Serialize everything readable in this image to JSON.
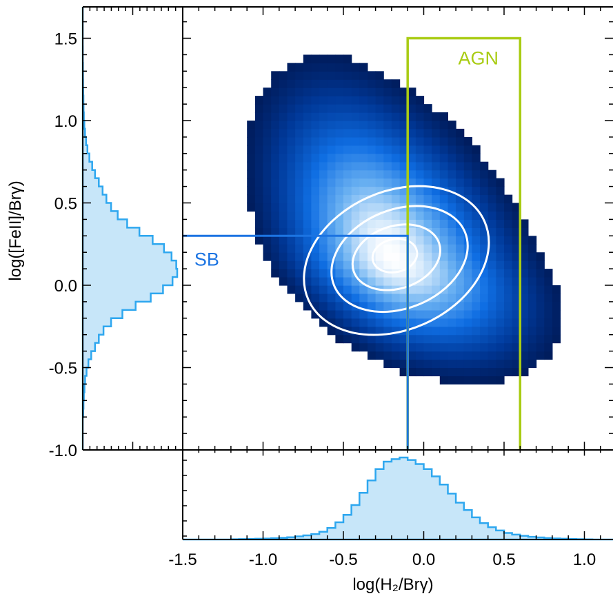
{
  "chart_data": {
    "type": "heatmap",
    "xlabel": "log(H₂/Brγ)",
    "ylabel": "log([FeII]/Brγ)",
    "xlim": [
      -1.5,
      1.1
    ],
    "ylim": [
      -1.0,
      1.65
    ],
    "x_ticks": [
      "-1.5",
      "-1.0",
      "-0.5",
      "0.0",
      "0.5",
      "1.0"
    ],
    "y_ticks": [
      "1.5",
      "1.0",
      "0.5",
      "0.0",
      "-0.5",
      "-1.0"
    ],
    "x_tick_values": [
      -1.5,
      -1.0,
      -0.5,
      0.0,
      0.5,
      1.0
    ],
    "y_tick_values": [
      1.5,
      1.0,
      0.5,
      0.0,
      -0.5,
      -1.0
    ],
    "density_peak": {
      "x": -0.2,
      "y": 0.17
    },
    "colormap": [
      "#00072f",
      "#003898",
      "#0f6ee3",
      "#6cb2f2",
      "#ffffff"
    ],
    "regions": [
      {
        "name": "AGN",
        "label": "AGN",
        "color": "#a9cc14",
        "x_range": [
          -0.1,
          0.6
        ],
        "y_range": [
          -1.0,
          1.5
        ]
      },
      {
        "name": "SB",
        "label": "SB",
        "color": "#1c74e2",
        "x_max": -0.1,
        "y_max": 0.3
      }
    ],
    "contour_color": "#ffffff",
    "histogram_color": "#2ea7ef",
    "histogram_fill": "#c7e6f9",
    "hist_x": {
      "x": [
        -1.5,
        -1.45,
        -1.4,
        -1.35,
        -1.3,
        -1.25,
        -1.2,
        -1.15,
        -1.1,
        -1.05,
        -1.0,
        -0.95,
        -0.9,
        -0.85,
        -0.8,
        -0.75,
        -0.7,
        -0.65,
        -0.6,
        -0.55,
        -0.5,
        -0.45,
        -0.4,
        -0.35,
        -0.3,
        -0.25,
        -0.2,
        -0.15,
        -0.1,
        -0.05,
        0.0,
        0.05,
        0.1,
        0.15,
        0.2,
        0.25,
        0.3,
        0.35,
        0.4,
        0.45,
        0.5,
        0.55,
        0.6,
        0.65,
        0.7,
        0.75,
        0.8,
        0.85,
        0.9,
        0.95,
        1.0,
        1.05
      ],
      "counts": [
        0.0,
        0.0,
        0.0,
        0.0,
        0.0,
        0.0,
        0.003,
        0.005,
        0.007,
        0.009,
        0.012,
        0.016,
        0.021,
        0.028,
        0.038,
        0.05,
        0.066,
        0.095,
        0.14,
        0.21,
        0.3,
        0.42,
        0.57,
        0.72,
        0.86,
        0.95,
        0.98,
        1.0,
        0.97,
        0.92,
        0.86,
        0.77,
        0.67,
        0.56,
        0.45,
        0.36,
        0.27,
        0.2,
        0.15,
        0.11,
        0.08,
        0.06,
        0.045,
        0.033,
        0.025,
        0.018,
        0.013,
        0.009,
        0.006,
        0.004,
        0.002,
        0.0
      ]
    },
    "hist_y": {
      "y": [
        -1.0,
        -0.95,
        -0.9,
        -0.85,
        -0.8,
        -0.75,
        -0.7,
        -0.65,
        -0.6,
        -0.55,
        -0.5,
        -0.45,
        -0.4,
        -0.35,
        -0.3,
        -0.25,
        -0.2,
        -0.15,
        -0.1,
        -0.05,
        0.0,
        0.05,
        0.1,
        0.15,
        0.2,
        0.25,
        0.3,
        0.35,
        0.4,
        0.45,
        0.5,
        0.55,
        0.6,
        0.65,
        0.7,
        0.75,
        0.8,
        0.85,
        0.9,
        0.95,
        1.0,
        1.05,
        1.1,
        1.15,
        1.2,
        1.25,
        1.3,
        1.35,
        1.4,
        1.45,
        1.5,
        1.55,
        1.6
      ],
      "counts": [
        0.0,
        0.0,
        0.0,
        0.0,
        0.005,
        0.008,
        0.012,
        0.018,
        0.025,
        0.04,
        0.06,
        0.09,
        0.13,
        0.17,
        0.22,
        0.3,
        0.42,
        0.56,
        0.72,
        0.85,
        0.95,
        1.0,
        0.99,
        0.94,
        0.86,
        0.74,
        0.6,
        0.47,
        0.37,
        0.3,
        0.25,
        0.21,
        0.17,
        0.13,
        0.1,
        0.07,
        0.05,
        0.035,
        0.024,
        0.017,
        0.012,
        0.009,
        0.007,
        0.005,
        0.004,
        0.003,
        0.002,
        0.001,
        0.001,
        0.0,
        0.0,
        0.0,
        0.0
      ]
    }
  }
}
